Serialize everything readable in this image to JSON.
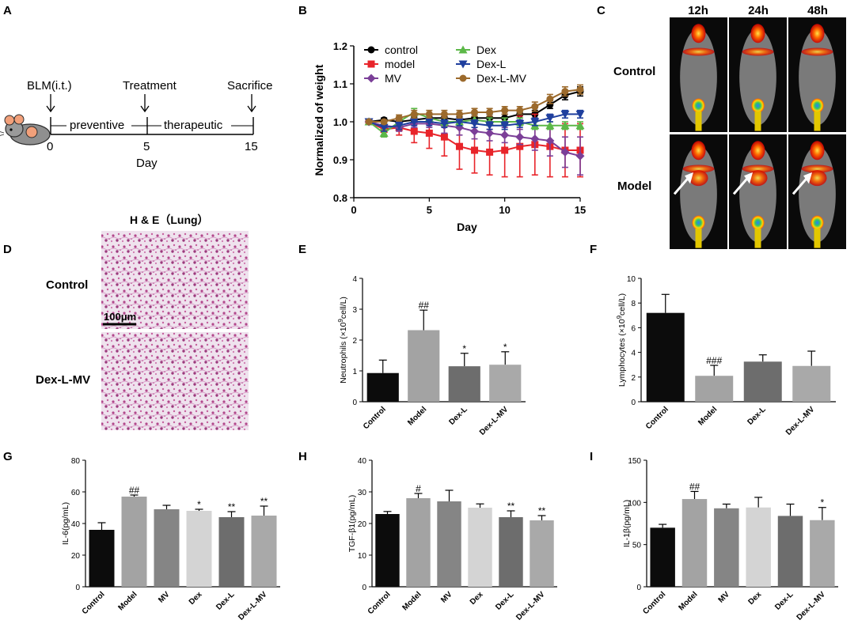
{
  "panel_letters": [
    "A",
    "B",
    "C",
    "D",
    "E",
    "F",
    "G",
    "H",
    "I"
  ],
  "panelA": {
    "events": [
      "BLM(i.t.)",
      "Treatment",
      "Sacrifice"
    ],
    "phases": [
      "preventive",
      "therapeutic"
    ],
    "ticks": [
      "0",
      "5",
      "15"
    ],
    "xlabel": "Day"
  },
  "panelC": {
    "timepoints": [
      "12h",
      "24h",
      "48h"
    ],
    "groups": [
      "Control",
      "Model"
    ]
  },
  "panelD": {
    "title": "H & E（Lung）",
    "groups": [
      "Control",
      "Dex-L-MV"
    ],
    "scalebar": "100μm"
  },
  "colors": {
    "control": "#000000",
    "model": "#e8242a",
    "MV": "#7b3f98",
    "Dex": "#5cb848",
    "Dex-L": "#1f3f9e",
    "Dex-L-MV": "#9c6a2c",
    "bar_control": "#0c0c0c",
    "bar_model": "#a3a3a3",
    "bar_mv": "#858585",
    "bar_dex": "#d4d4d4",
    "bar_dexl": "#6d6d6d",
    "bar_dexlmv": "#a9a9a9"
  },
  "chart_data": [
    {
      "id": "B",
      "type": "line",
      "xlabel": "Day",
      "ylabel": "Normalized of weight",
      "xlim": [
        0,
        15
      ],
      "ylim": [
        0.8,
        1.2
      ],
      "xticks": [
        0,
        5,
        10,
        15
      ],
      "yticks": [
        0.8,
        0.9,
        1.0,
        1.1,
        1.2
      ],
      "x": [
        1,
        2,
        3,
        4,
        5,
        6,
        7,
        8,
        9,
        10,
        11,
        12,
        13,
        14,
        15
      ],
      "series": [
        {
          "name": "control",
          "marker": "circle",
          "values": [
            1.0,
            1.005,
            1.0,
            1.005,
            1.01,
            1.01,
            1.005,
            1.01,
            1.01,
            1.01,
            1.02,
            1.02,
            1.045,
            1.07,
            1.08
          ],
          "err": [
            0,
            0.005,
            0.005,
            0.008,
            0.008,
            0.008,
            0.008,
            0.01,
            0.01,
            0.01,
            0.01,
            0.01,
            0.01,
            0.012,
            0.012
          ]
        },
        {
          "name": "model",
          "marker": "square",
          "values": [
            1.0,
            0.98,
            0.985,
            0.975,
            0.97,
            0.96,
            0.935,
            0.925,
            0.92,
            0.925,
            0.935,
            0.94,
            0.935,
            0.925,
            0.925
          ],
          "err": [
            0,
            0.02,
            0.02,
            0.03,
            0.04,
            0.05,
            0.06,
            0.06,
            0.06,
            0.07,
            0.08,
            0.08,
            0.08,
            0.07,
            0.07
          ]
        },
        {
          "name": "MV",
          "marker": "diamond",
          "values": [
            1.0,
            0.99,
            0.985,
            0.995,
            0.995,
            0.99,
            0.985,
            0.975,
            0.97,
            0.965,
            0.96,
            0.955,
            0.95,
            0.92,
            0.91
          ],
          "err": [
            0,
            0.01,
            0.01,
            0.01,
            0.01,
            0.02,
            0.02,
            0.02,
            0.02,
            0.02,
            0.02,
            0.03,
            0.04,
            0.04,
            0.05
          ]
        },
        {
          "name": "Dex",
          "marker": "triangle-up",
          "values": [
            1.0,
            0.97,
            1.0,
            1.025,
            1.01,
            1.0,
            1.0,
            1.005,
            1.0,
            1.0,
            1.0,
            0.99,
            0.99,
            0.99,
            0.99
          ],
          "err": [
            0,
            0.01,
            0.01,
            0.01,
            0.01,
            0.01,
            0.01,
            0.01,
            0.01,
            0.01,
            0.01,
            0.01,
            0.01,
            0.01,
            0.01
          ]
        },
        {
          "name": "Dex-L",
          "marker": "triangle-down",
          "values": [
            1.0,
            0.985,
            0.99,
            1.0,
            1.0,
            0.995,
            1.0,
            0.995,
            0.99,
            0.99,
            0.995,
            1.0,
            1.01,
            1.02,
            1.02
          ],
          "err": [
            0,
            0.01,
            0.01,
            0.01,
            0.01,
            0.01,
            0.01,
            0.01,
            0.01,
            0.01,
            0.01,
            0.01,
            0.01,
            0.01,
            0.01
          ]
        },
        {
          "name": "Dex-L-MV",
          "marker": "circle",
          "values": [
            1.0,
            1.0,
            1.01,
            1.02,
            1.02,
            1.02,
            1.02,
            1.025,
            1.025,
            1.03,
            1.03,
            1.04,
            1.06,
            1.08,
            1.085
          ],
          "err": [
            0,
            0.005,
            0.008,
            0.01,
            0.01,
            0.01,
            0.01,
            0.01,
            0.01,
            0.01,
            0.01,
            0.012,
            0.012,
            0.012,
            0.012
          ]
        }
      ]
    },
    {
      "id": "E",
      "type": "bar",
      "ylabel": "Neutrophils (×10",
      "ylabel_sup": "9",
      "ylabel_end": "cell/L)",
      "ylim": [
        0,
        4
      ],
      "yticks": [
        0,
        1,
        2,
        3,
        4
      ],
      "categories": [
        "Control",
        "Model",
        "Dex-L",
        "Dex-L-MV"
      ],
      "values": [
        0.93,
        2.32,
        1.15,
        1.2
      ],
      "err": [
        0.42,
        0.65,
        0.42,
        0.42
      ],
      "annotations": [
        "",
        "##",
        "*",
        "*"
      ]
    },
    {
      "id": "F",
      "type": "bar",
      "ylabel": "Lymphocytes (×10",
      "ylabel_sup": "9",
      "ylabel_end": "cell/L)",
      "ylim": [
        0,
        10
      ],
      "yticks": [
        0,
        2,
        4,
        6,
        8,
        10
      ],
      "categories": [
        "Control",
        "Model",
        "Dex-L",
        "Dex-L-MV"
      ],
      "values": [
        7.2,
        2.1,
        3.25,
        2.9
      ],
      "err": [
        1.5,
        0.85,
        0.55,
        1.2
      ],
      "annotations": [
        "",
        "###",
        "",
        ""
      ]
    },
    {
      "id": "G",
      "type": "bar",
      "ylabel": "IL-6(pg/mL)",
      "ylim": [
        0,
        80
      ],
      "yticks": [
        0,
        20,
        40,
        60,
        80
      ],
      "categories": [
        "Control",
        "Model",
        "MV",
        "Dex",
        "Dex-L",
        "Dex-L-MV"
      ],
      "values": [
        36,
        57,
        49,
        48,
        44,
        45
      ],
      "err": [
        4.5,
        1.0,
        2.5,
        1.0,
        3.5,
        6.0
      ],
      "annotations": [
        "",
        "##",
        "",
        "*",
        "**",
        "**"
      ]
    },
    {
      "id": "H",
      "type": "bar",
      "ylabel": "TGF-β1(pg/mL)",
      "ylim": [
        0,
        40
      ],
      "yticks": [
        0,
        10,
        20,
        30,
        40
      ],
      "categories": [
        "Control",
        "Model",
        "MV",
        "Dex",
        "Dex-L",
        "Dex-L-MV"
      ],
      "values": [
        23,
        28,
        27,
        25,
        22,
        21
      ],
      "err": [
        0.8,
        1.5,
        3.5,
        1.2,
        2.0,
        1.5
      ],
      "annotations": [
        "",
        "#",
        "",
        "",
        "**",
        "**"
      ]
    },
    {
      "id": "I",
      "type": "bar",
      "ylabel": "IL-1β(pg/mL)",
      "ylim": [
        0,
        150
      ],
      "yticks": [
        0,
        50,
        100,
        150
      ],
      "categories": [
        "Control",
        "Model",
        "MV",
        "Dex",
        "Dex-L",
        "Dex-L-MV"
      ],
      "values": [
        70,
        104,
        93,
        94,
        84,
        79
      ],
      "err": [
        4,
        9,
        5,
        12,
        14,
        15
      ],
      "annotations": [
        "",
        "##",
        "",
        "",
        "",
        "*"
      ]
    }
  ]
}
